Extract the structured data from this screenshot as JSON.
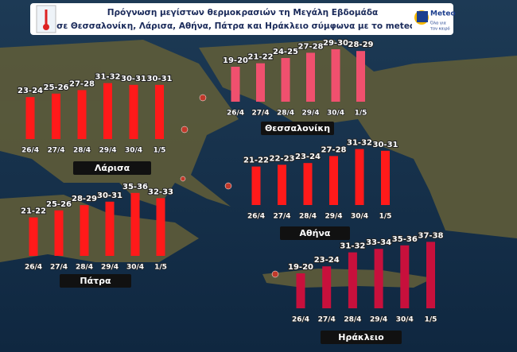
{
  "header": {
    "title_line1": "Πρόγνωση μεγίστων θερμοκρασιών τη Μεγάλη Εβδομάδα",
    "title_line2": "σε Θεσσαλονίκη, Λάρισα, Αθήνα, Πάτρα και Ηράκλειο σύμφωνα με το meteo.gr",
    "logo": "Meteo",
    "logo_tagline_1": "Όλα για",
    "logo_tagline_2": "τον καιρό"
  },
  "chart_data": [
    {
      "type": "bar",
      "title": "Θεσσαλονίκη",
      "categories": [
        "26/4",
        "27/4",
        "28/4",
        "29/4",
        "30/4",
        "1/5"
      ],
      "values": [
        20,
        22,
        25,
        28,
        30,
        29
      ],
      "value_labels": [
        "19-20",
        "21-22",
        "24-25",
        "27-28",
        "29-30",
        "28-29"
      ],
      "color": "#f0506e"
    },
    {
      "type": "bar",
      "title": "Λάρισα",
      "categories": [
        "26/4",
        "27/4",
        "28/4",
        "29/4",
        "30/4",
        "1/5"
      ],
      "values": [
        24,
        26,
        28,
        32,
        31,
        31
      ],
      "value_labels": [
        "23-24",
        "25-26",
        "27-28",
        "31-32",
        "30-31",
        "30-31"
      ],
      "color": "#ff1a1a"
    },
    {
      "type": "bar",
      "title": "Αθήνα",
      "categories": [
        "26/4",
        "27/4",
        "28/4",
        "29/4",
        "30/4",
        "1/5"
      ],
      "values": [
        22,
        23,
        24,
        28,
        32,
        31
      ],
      "value_labels": [
        "21-22",
        "22-23",
        "23-24",
        "27-28",
        "31-32",
        "30-31"
      ],
      "color": "#ff1a1a"
    },
    {
      "type": "bar",
      "title": "Πάτρα",
      "categories": [
        "26/4",
        "27/4",
        "28/4",
        "29/4",
        "30/4",
        "1/5"
      ],
      "values": [
        22,
        26,
        29,
        31,
        36,
        33
      ],
      "value_labels": [
        "21-22",
        "25-26",
        "28-29",
        "30-31",
        "35-36",
        "32-33"
      ],
      "color": "#ff1a1a"
    },
    {
      "type": "bar",
      "title": "Ηράκλειο",
      "categories": [
        "26/4",
        "27/4",
        "28/4",
        "29/4",
        "30/4",
        "1/5"
      ],
      "values": [
        20,
        24,
        32,
        34,
        36,
        38
      ],
      "value_labels": [
        "19-20",
        "23-24",
        "31-32",
        "33-34",
        "35-36",
        "37-38"
      ],
      "color": "#c8103c"
    }
  ]
}
